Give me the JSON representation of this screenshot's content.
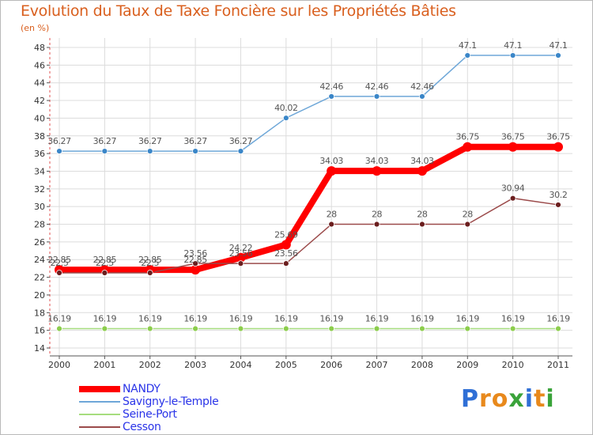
{
  "title": "Evolution du Taux de Taxe Foncière sur les Propriétés Bâties",
  "unit_label": "(en %)",
  "brand": {
    "text": "Proxiti",
    "letters": [
      {
        "char": "P",
        "color": "#2f6fd6"
      },
      {
        "char": "r",
        "color": "#e8891c"
      },
      {
        "char": "o",
        "color": "#e8891c"
      },
      {
        "char": "x",
        "color": "#3aa33a"
      },
      {
        "char": "i",
        "color": "#2f6fd6"
      },
      {
        "char": "t",
        "color": "#e8891c"
      },
      {
        "char": "i",
        "color": "#3aa33a"
      }
    ]
  },
  "chart_data": {
    "type": "line",
    "title": "Evolution du Taux de Taxe Foncière sur les Propriétés Bâties",
    "ylabel": "(en %)",
    "xlabel": "",
    "categories": [
      "2000",
      "2001",
      "2002",
      "2003",
      "2004",
      "2005",
      "2006",
      "2007",
      "2008",
      "2009",
      "2010",
      "2011"
    ],
    "ylim": [
      14,
      48
    ],
    "yticks": [
      14,
      16,
      18,
      20,
      22,
      24,
      26,
      28,
      30,
      32,
      34,
      36,
      38,
      40,
      42,
      44,
      46,
      48
    ],
    "grid": true,
    "series": [
      {
        "name": "NANDY",
        "color": "#ff0000",
        "thick": true,
        "values": [
          22.85,
          22.85,
          22.85,
          22.85,
          24.22,
          25.69,
          34.03,
          34.03,
          34.03,
          36.75,
          36.75,
          36.75
        ],
        "labels": [
          "22.85",
          "22.85",
          "22.85",
          "22.85",
          "24.22",
          "25.69",
          "34.03",
          "34.03",
          "34.03",
          "36.75",
          "36.75",
          "36.75"
        ]
      },
      {
        "name": "Savigny-le-Temple",
        "color": "#6ea7d8",
        "marker": "#3a86c8",
        "values": [
          36.27,
          36.27,
          36.27,
          36.27,
          36.27,
          40.02,
          42.46,
          42.46,
          42.46,
          47.1,
          47.1,
          47.1
        ],
        "labels": [
          "36.27",
          "36.27",
          "36.27",
          "36.27",
          "36.27",
          "40.02",
          "42.46",
          "42.46",
          "42.46",
          "47.1",
          "47.1",
          "47.1"
        ]
      },
      {
        "name": "Seine-Port",
        "color": "#a6dd7e",
        "marker": "#8ccd4c",
        "values": [
          16.19,
          16.19,
          16.19,
          16.19,
          16.19,
          16.19,
          16.19,
          16.19,
          16.19,
          16.19,
          16.19,
          16.19
        ],
        "labels": [
          "16.19",
          "16.19",
          "16.19",
          "16.19",
          "16.19",
          "16.19",
          "16.19",
          "16.19",
          "16.19",
          "16.19",
          "16.19",
          "16.19"
        ]
      },
      {
        "name": "Cesson",
        "color": "#9b4a4a",
        "marker": "#6b1e1e",
        "values": [
          22.5,
          22.5,
          22.5,
          23.56,
          23.56,
          23.56,
          28,
          28,
          28,
          28,
          30.94,
          30.2
        ],
        "labels": [
          "22.5",
          "22.5",
          "22.5",
          "23.56",
          "23.56",
          "23.56",
          "28",
          "28",
          "28",
          "28",
          "30.94",
          "30.2"
        ]
      }
    ]
  }
}
